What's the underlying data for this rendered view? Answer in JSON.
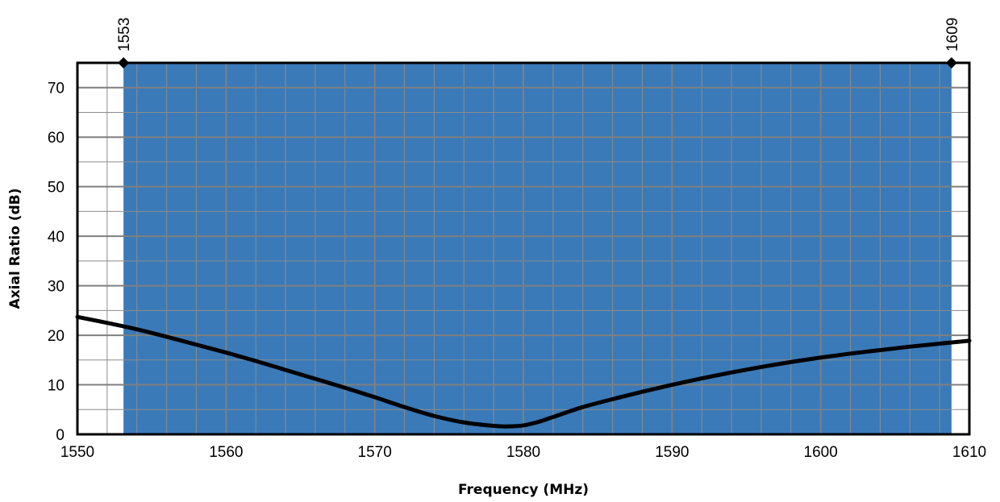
{
  "chart_data": {
    "type": "line",
    "xlabel": "Frequency (MHz)",
    "ylabel": "Axial Ratio (dB)",
    "xlim": [
      1550,
      1610
    ],
    "ylim": [
      0,
      75
    ],
    "x_ticks": [
      1550,
      1560,
      1570,
      1580,
      1590,
      1600,
      1610
    ],
    "x_tick_labels": [
      "1550",
      "1560",
      "1570",
      "1580",
      "1590",
      "1600",
      "1610"
    ],
    "y_ticks": [
      0,
      10,
      20,
      30,
      40,
      50,
      60,
      70
    ],
    "y_tick_labels": [
      "0",
      "10",
      "20",
      "30",
      "40",
      "50",
      "60",
      "70"
    ],
    "x_minor_step": 2,
    "y_minor_step": 5,
    "grid": true,
    "band": {
      "start": 1553.1,
      "end": 1608.8,
      "color": "#3a7ab8"
    },
    "markers": [
      {
        "x": 1553.1,
        "label": "1553"
      },
      {
        "x": 1608.8,
        "label": "1609"
      }
    ],
    "series": [
      {
        "color": "#000000",
        "x": [
          1550,
          1552,
          1554,
          1556,
          1558,
          1560,
          1562,
          1564,
          1566,
          1568,
          1570,
          1572,
          1574,
          1576,
          1578,
          1579,
          1580,
          1581,
          1582,
          1584,
          1586,
          1588,
          1590,
          1592,
          1594,
          1596,
          1598,
          1600,
          1602,
          1604,
          1606,
          1608,
          1610
        ],
        "y": [
          23.7,
          22.5,
          21.2,
          19.7,
          18.1,
          16.5,
          14.8,
          13.0,
          11.2,
          9.4,
          7.5,
          5.5,
          3.7,
          2.4,
          1.7,
          1.6,
          1.8,
          2.5,
          3.5,
          5.5,
          7.1,
          8.6,
          10.0,
          11.3,
          12.5,
          13.6,
          14.6,
          15.5,
          16.3,
          17.0,
          17.7,
          18.3,
          18.9
        ]
      }
    ]
  }
}
